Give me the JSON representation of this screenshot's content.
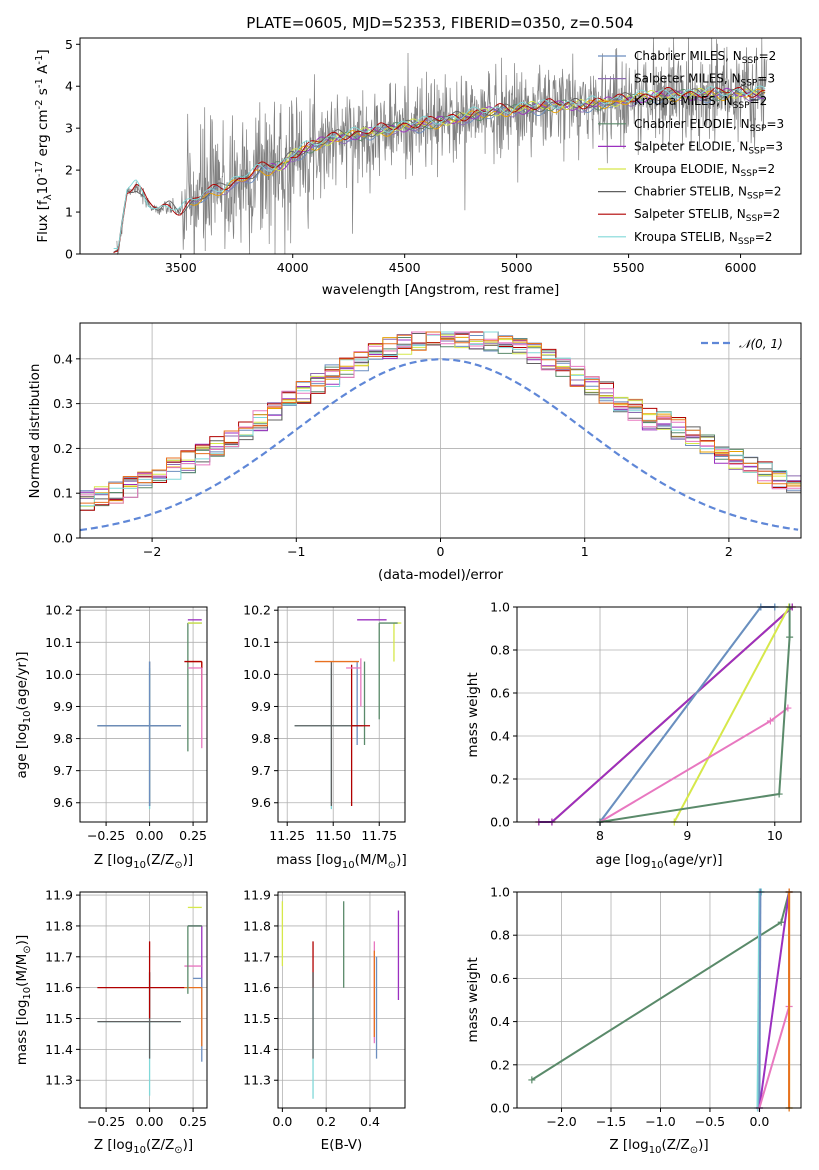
{
  "figure": {
    "title": "PLATE=0605, MJD=52353, FIBERID=0350, z=0.504"
  },
  "colors": {
    "Chabrier MILES": "#6c8ebf",
    "Salpeter MILES": "#8c6bb1",
    "Kroupa MILES": "#e8a202",
    "Chabrier ELODIE": "#5a8a6a",
    "Salpeter ELODIE": "#9b30c0",
    "Kroupa ELODIE": "#d6e84a",
    "Chabrier STELIB": "#606060",
    "Salpeter STELIB": "#b00000",
    "Kroupa STELIB": "#80d8d8",
    "extra_orange": "#e87020",
    "extra_pink": "#e878c0",
    "data": "#808080",
    "gauss": "#5f87d7"
  },
  "chart_data": [
    {
      "id": "spectrum",
      "type": "line",
      "title": "PLATE=0605, MJD=52353, FIBERID=0350, z=0.504",
      "xlabel": "wavelength [Angstrom, rest frame]",
      "ylabel": "Flux [f$_\\lambda$10$^{-17}$ erg cm$^{-2}$ s$^{-1}$ A$^{-1}$]",
      "xlim": [
        3050,
        6270
      ],
      "ylim": [
        0,
        5.15
      ],
      "xticks": [
        3500,
        4000,
        4500,
        5000,
        5500,
        6000
      ],
      "yticks": [
        0,
        1,
        2,
        3,
        4,
        5
      ],
      "legend_position": "upper-right",
      "legend": [
        {
          "label": "Chabrier MILES, N",
          "sub": "SSP",
          "suffix": "=2",
          "color": "#6c8ebf"
        },
        {
          "label": "Salpeter MILES, N",
          "sub": "SSP",
          "suffix": "=3",
          "color": "#8c6bb1"
        },
        {
          "label": "Kroupa MILES, N",
          "sub": "SSP",
          "suffix": "=2",
          "color": "#e8a202"
        },
        {
          "label": "Chabrier ELODIE, N",
          "sub": "SSP",
          "suffix": "=3",
          "color": "#5a8a6a"
        },
        {
          "label": "Salpeter ELODIE, N",
          "sub": "SSP",
          "suffix": "=3",
          "color": "#9b30c0"
        },
        {
          "label": "Kroupa ELODIE, N",
          "sub": "SSP",
          "suffix": "=2",
          "color": "#d6e84a"
        },
        {
          "label": "Chabrier STELIB, N",
          "sub": "SSP",
          "suffix": "=2",
          "color": "#606060"
        },
        {
          "label": "Salpeter STELIB, N",
          "sub": "SSP",
          "suffix": "=2",
          "color": "#b00000"
        },
        {
          "label": "Kroupa STELIB, N",
          "sub": "SSP",
          "suffix": "=2",
          "color": "#80d8d8"
        }
      ],
      "continuum": {
        "x": [
          3220,
          3260,
          3300,
          3350,
          3400,
          3450,
          3500,
          3550,
          3600,
          3650,
          3700,
          3750,
          3800,
          3850,
          3900,
          3950,
          4000,
          4100,
          4200,
          4300,
          4400,
          4500,
          4600,
          4700,
          4800,
          4900,
          5000,
          5100,
          5200,
          5300,
          5400,
          5500,
          5600,
          5700,
          5800,
          5900,
          6000,
          6120
        ],
        "y": [
          0.0,
          1.5,
          1.6,
          1.2,
          1.05,
          1.1,
          1.0,
          1.2,
          1.4,
          1.5,
          1.6,
          1.7,
          1.85,
          2.0,
          2.05,
          2.1,
          2.35,
          2.6,
          2.8,
          2.85,
          2.95,
          3.05,
          3.1,
          3.2,
          3.3,
          3.4,
          3.45,
          3.5,
          3.55,
          3.55,
          3.6,
          3.7,
          3.75,
          3.8,
          3.8,
          3.8,
          3.85,
          3.8
        ]
      },
      "model_x_start": {
        "MILES": 3540,
        "ELODIE": 3900,
        "STELIB": 3200
      }
    },
    {
      "id": "residuals",
      "type": "histogram",
      "xlabel": "(data-model)/error",
      "ylabel": "Normed distribution",
      "xlim": [
        -2.5,
        2.5
      ],
      "ylim": [
        0,
        0.48
      ],
      "xticks": [
        -2,
        -1,
        0,
        1,
        2
      ],
      "yticks": [
        0.0,
        0.1,
        0.2,
        0.3,
        0.4
      ],
      "bin_width": 0.1,
      "legend": [
        {
          "label": "𝒩(0, 1)",
          "style": "dashed",
          "color": "#5f87d7"
        }
      ],
      "legend_position": "upper-right"
    },
    {
      "id": "age-vs-Z",
      "type": "scatter",
      "xlabel": "Z [log$_{10}$(Z/Z$_\\odot$)]",
      "ylabel": "age  [log$_{10}$(age/yr)]",
      "xlim": [
        -0.4,
        0.33
      ],
      "ylim": [
        9.54,
        10.21
      ],
      "xticks": [
        -0.25,
        0.0,
        0.25
      ],
      "yticks": [
        9.6,
        9.7,
        9.8,
        9.9,
        10.0,
        10.1,
        10.2
      ],
      "points": [
        {
          "x": 0.0,
          "y": 9.84,
          "xerr": [
            0.3,
            0.18
          ],
          "yerr": [
            0.26,
            0.18
          ],
          "color": "#80d8d8"
        },
        {
          "x": 0.0,
          "y": 9.84,
          "xerr": [
            0.3,
            0.18
          ],
          "yerr": [
            0.25,
            0.2
          ],
          "color": "#606060"
        },
        {
          "x": 0.0,
          "y": 9.84,
          "xerr": [
            0.3,
            0.18
          ],
          "yerr": [
            0.25,
            0.2
          ],
          "color": "#6c8ebf"
        },
        {
          "x": 0.22,
          "y": 10.16,
          "xerr": [
            0.0,
            0.08
          ],
          "yerr": [
            0.4,
            0.0
          ],
          "color": "#5a8a6a"
        },
        {
          "x": 0.3,
          "y": 10.17,
          "xerr": [
            0.08,
            0.0
          ],
          "yerr": [
            0.0,
            0.0
          ],
          "color": "#9b30c0"
        },
        {
          "x": 0.3,
          "y": 10.16,
          "xerr": [
            0.08,
            0.0
          ],
          "yerr": [
            0.0,
            0.0
          ],
          "color": "#d6e84a"
        },
        {
          "x": 0.3,
          "y": 10.04,
          "xerr": [
            0.08,
            0.0
          ],
          "yerr": [
            0.15,
            0.0
          ],
          "color": "#e87020"
        },
        {
          "x": 0.3,
          "y": 10.04,
          "xerr": [
            0.1,
            0.0
          ],
          "yerr": [
            0.12,
            0.0
          ],
          "color": "#b00000"
        },
        {
          "x": 0.3,
          "y": 10.02,
          "xerr": [
            0.08,
            0.0
          ],
          "yerr": [
            0.25,
            0.0
          ],
          "color": "#e878c0"
        }
      ]
    },
    {
      "id": "age-vs-mass",
      "type": "scatter",
      "xlabel": "mass [log$_{10}$(M/M$_\\odot$)]",
      "ylabel": "",
      "xlim": [
        11.2,
        11.89
      ],
      "ylim": [
        9.54,
        10.21
      ],
      "xticks": [
        11.25,
        11.5,
        11.75
      ],
      "yticks": [
        9.6,
        9.7,
        9.8,
        9.9,
        10.0,
        10.1,
        10.2
      ],
      "points": [
        {
          "x": 11.49,
          "y": 9.84,
          "xerr": [
            0.2,
            0.14
          ],
          "yerr": [
            0.26,
            0.18
          ],
          "color": "#80d8d8"
        },
        {
          "x": 11.49,
          "y": 9.84,
          "xerr": [
            0.2,
            0.14
          ],
          "yerr": [
            0.25,
            0.2
          ],
          "color": "#606060"
        },
        {
          "x": 11.63,
          "y": 9.84,
          "xerr": [
            0.0,
            0.03
          ],
          "yerr": [
            0.06,
            0.2
          ],
          "color": "#6c8ebf"
        },
        {
          "x": 11.67,
          "y": 9.84,
          "xerr": [
            0.0,
            0.0
          ],
          "yerr": [
            0.06,
            0.2
          ],
          "color": "#5a8a6a"
        },
        {
          "x": 11.6,
          "y": 9.84,
          "xerr": [
            0.0,
            0.1
          ],
          "yerr": [
            0.25,
            0.19
          ],
          "color": "#b00000"
        },
        {
          "x": 11.73,
          "y": 10.17,
          "xerr": [
            0.1,
            0.06
          ],
          "yerr": [
            0.0,
            0.0
          ],
          "color": "#9b30c0"
        },
        {
          "x": 11.83,
          "y": 10.16,
          "xerr": [
            0.0,
            0.04
          ],
          "yerr": [
            0.12,
            0.0
          ],
          "color": "#d6e84a"
        },
        {
          "x": 11.5,
          "y": 10.04,
          "xerr": [
            0.1,
            0.14
          ],
          "yerr": [
            0.0,
            0.0
          ],
          "color": "#e87020"
        },
        {
          "x": 11.65,
          "y": 10.02,
          "xerr": [
            0.08,
            0.0
          ],
          "yerr": [
            0.12,
            0.03
          ],
          "color": "#e878c0"
        },
        {
          "x": 11.75,
          "y": 10.16,
          "xerr": [
            0.0,
            0.1
          ],
          "yerr": [
            0.3,
            0.0
          ],
          "color": "#5a8a6a"
        }
      ]
    },
    {
      "id": "cumweight-vs-age",
      "type": "line",
      "xlabel": "age  [log$_{10}$(age/yr)]",
      "ylabel": "mass weight",
      "xlim": [
        7.05,
        10.3
      ],
      "ylim": [
        0,
        1.0
      ],
      "xticks": [
        8,
        9,
        10
      ],
      "yticks": [
        0.0,
        0.2,
        0.4,
        0.6,
        0.8,
        1.0
      ],
      "series": [
        {
          "color": "#e87020",
          "x": [
            7.3,
            7.45,
            10.2
          ],
          "y": [
            0.0,
            0.0,
            1.0
          ]
        },
        {
          "color": "#9b30c0",
          "x": [
            7.3,
            7.45,
            10.2
          ],
          "y": [
            0.0,
            0.0,
            1.0
          ]
        },
        {
          "color": "#80d8d8",
          "x": [
            8.0,
            9.84,
            10.0
          ],
          "y": [
            0.0,
            1.0,
            1.0
          ]
        },
        {
          "color": "#6c8ebf",
          "x": [
            8.0,
            9.84,
            10.0
          ],
          "y": [
            0.0,
            1.0,
            1.0
          ]
        },
        {
          "color": "#d6e84a",
          "x": [
            8.85,
            10.16
          ],
          "y": [
            0.0,
            1.0
          ]
        },
        {
          "color": "#e878c0",
          "x": [
            8.0,
            9.95,
            10.15
          ],
          "y": [
            0.0,
            0.47,
            0.53
          ]
        },
        {
          "color": "#5a8a6a",
          "x": [
            8.0,
            10.05,
            10.17,
            10.17
          ],
          "y": [
            0.0,
            0.13,
            0.86,
            1.0
          ]
        }
      ]
    },
    {
      "id": "mass-vs-Z",
      "type": "scatter",
      "xlabel": "Z [log$_{10}$(Z/Z$_\\odot$)]",
      "ylabel": "mass [log$_{10}$(M/M$_\\odot$)]",
      "xlim": [
        -0.4,
        0.33
      ],
      "ylim": [
        11.21,
        11.91
      ],
      "xticks": [
        -0.25,
        0.0,
        0.25
      ],
      "yticks": [
        11.3,
        11.4,
        11.5,
        11.6,
        11.7,
        11.8,
        11.9
      ],
      "points": [
        {
          "x": 0.0,
          "y": 11.49,
          "xerr": [
            0.3,
            0.18
          ],
          "yerr": [
            0.24,
            0.16
          ],
          "color": "#80d8d8"
        },
        {
          "x": 0.0,
          "y": 11.49,
          "xerr": [
            0.3,
            0.18
          ],
          "yerr": [
            0.12,
            0.16
          ],
          "color": "#606060"
        },
        {
          "x": 0.0,
          "y": 11.6,
          "xerr": [
            0.3,
            0.2
          ],
          "yerr": [
            0.1,
            0.15
          ],
          "color": "#b00000"
        },
        {
          "x": 0.3,
          "y": 11.86,
          "xerr": [
            0.08,
            0.0
          ],
          "yerr": [
            0.0,
            0.0
          ],
          "color": "#d6e84a"
        },
        {
          "x": 0.3,
          "y": 11.8,
          "xerr": [
            0.08,
            0.0
          ],
          "yerr": [
            0.24,
            0.0
          ],
          "color": "#9b30c0"
        },
        {
          "x": 0.3,
          "y": 11.8,
          "xerr": [
            0.08,
            0.0
          ],
          "yerr": [
            0.0,
            0.0
          ],
          "color": "#606060"
        },
        {
          "x": 0.3,
          "y": 11.63,
          "xerr": [
            0.05,
            0.0
          ],
          "yerr": [
            0.27,
            0.0
          ],
          "color": "#6c8ebf"
        },
        {
          "x": 0.3,
          "y": 11.6,
          "xerr": [
            0.1,
            0.0
          ],
          "yerr": [
            0.19,
            0.0
          ],
          "color": "#e87020"
        },
        {
          "x": 0.3,
          "y": 11.67,
          "xerr": [
            0.1,
            0.0
          ],
          "yerr": [
            0.0,
            0.0
          ],
          "color": "#e878c0"
        },
        {
          "x": 0.22,
          "y": 11.8,
          "xerr": [
            0.0,
            0.08
          ],
          "yerr": [
            0.22,
            0.0
          ],
          "color": "#5a8a6a"
        }
      ]
    },
    {
      "id": "mass-vs-ebv",
      "type": "scatter",
      "xlabel": "E(B-V)",
      "ylabel": "",
      "xlim": [
        -0.02,
        0.56
      ],
      "ylim": [
        11.21,
        11.91
      ],
      "xticks": [
        0.0,
        0.2,
        0.4
      ],
      "yticks": [
        11.3,
        11.4,
        11.5,
        11.6,
        11.7,
        11.8,
        11.9
      ],
      "points": [
        {
          "x": 0.0,
          "y": 11.86,
          "yerr": [
            0.19,
            0.02
          ],
          "color": "#d6e84a"
        },
        {
          "x": 0.14,
          "y": 11.49,
          "yerr": [
            0.25,
            0.16
          ],
          "color": "#80d8d8"
        },
        {
          "x": 0.14,
          "y": 11.6,
          "yerr": [
            0.0,
            0.15
          ],
          "color": "#b00000"
        },
        {
          "x": 0.14,
          "y": 11.49,
          "yerr": [
            0.12,
            0.16
          ],
          "color": "#606060"
        },
        {
          "x": 0.28,
          "y": 11.8,
          "yerr": [
            0.2,
            0.08
          ],
          "color": "#5a8a6a"
        },
        {
          "x": 0.42,
          "y": 11.6,
          "yerr": [
            0.18,
            0.15
          ],
          "color": "#e878c0"
        },
        {
          "x": 0.42,
          "y": 11.6,
          "yerr": [
            0.16,
            0.12
          ],
          "color": "#e87020"
        },
        {
          "x": 0.43,
          "y": 11.55,
          "yerr": [
            0.18,
            0.15
          ],
          "color": "#6c8ebf"
        },
        {
          "x": 0.53,
          "y": 11.8,
          "yerr": [
            0.24,
            0.05
          ],
          "color": "#9b30c0"
        }
      ]
    },
    {
      "id": "cumweight-vs-Z",
      "type": "line",
      "xlabel": "Z [log$_{10}$(Z/Z$_\\odot$)]",
      "ylabel": "mass weight",
      "xlim": [
        -2.45,
        0.42
      ],
      "ylim": [
        0,
        1.0
      ],
      "xticks": [
        -2.0,
        -1.5,
        -1.0,
        -0.5,
        0.0
      ],
      "yticks": [
        0.0,
        0.2,
        0.4,
        0.6,
        0.8,
        1.0
      ],
      "series": [
        {
          "color": "#5a8a6a",
          "x": [
            -2.3,
            0.22,
            0.3
          ],
          "y": [
            0.13,
            0.86,
            1.0
          ]
        },
        {
          "color": "#80d8d8",
          "x": [
            -0.02,
            0.0,
            0.02
          ],
          "y": [
            0.0,
            1.0,
            1.0
          ]
        },
        {
          "color": "#6c8ebf",
          "x": [
            0.0,
            0.01
          ],
          "y": [
            0.0,
            1.0
          ]
        },
        {
          "color": "#9b30c0",
          "x": [
            0.0,
            0.3
          ],
          "y": [
            0.0,
            1.0
          ]
        },
        {
          "color": "#e878c0",
          "x": [
            0.0,
            0.3,
            0.3
          ],
          "y": [
            0.0,
            0.47,
            1.0
          ]
        },
        {
          "color": "#d6e84a",
          "x": [
            0.3,
            0.3
          ],
          "y": [
            0.0,
            1.0
          ]
        },
        {
          "color": "#e87020",
          "x": [
            0.3,
            0.3
          ],
          "y": [
            0.0,
            1.0
          ]
        }
      ]
    }
  ]
}
